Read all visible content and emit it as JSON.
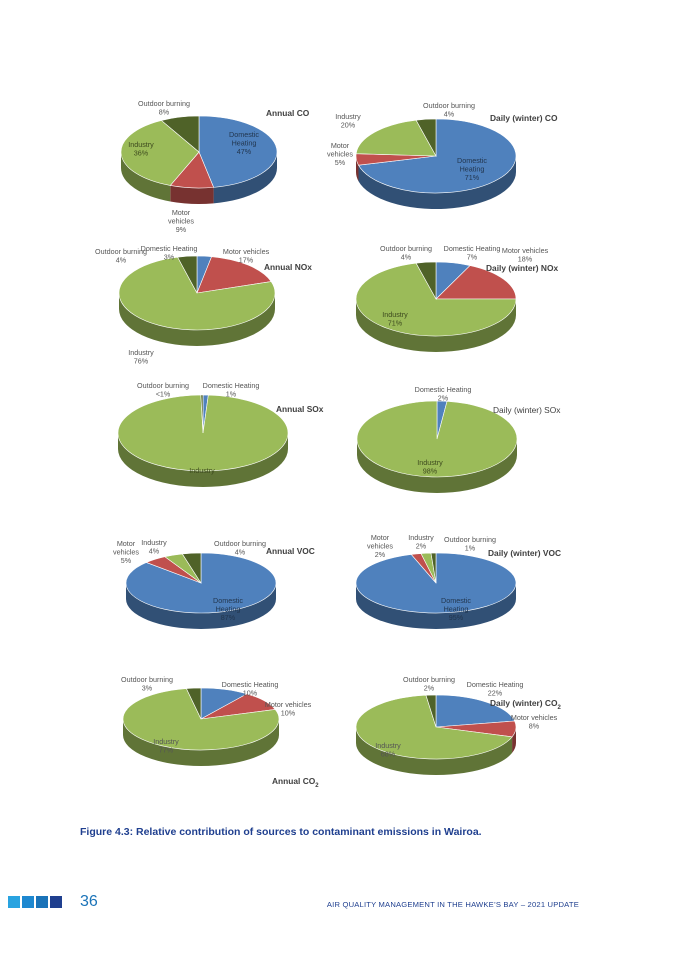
{
  "chart_data": [
    {
      "type": "pie",
      "title": "Annual CO",
      "slices": [
        {
          "label": "Domestic Heating",
          "pct_label": "47%",
          "value": 47
        },
        {
          "label": "Motor vehicles",
          "pct_label": "9%",
          "value": 9
        },
        {
          "label": "Industry",
          "pct_label": "36%",
          "value": 36
        },
        {
          "label": "Outdoor burning",
          "pct_label": "8%",
          "value": 8
        }
      ]
    },
    {
      "type": "pie",
      "title": "Daily (winter) CO",
      "slices": [
        {
          "label": "Domestic Heating",
          "pct_label": "71%",
          "value": 71
        },
        {
          "label": "Motor vehicles",
          "pct_label": "5%",
          "value": 5
        },
        {
          "label": "Industry",
          "pct_label": "20%",
          "value": 20
        },
        {
          "label": "Outdoor burning",
          "pct_label": "4%",
          "value": 4
        }
      ]
    },
    {
      "type": "pie",
      "title": "Annual NOx",
      "slices": [
        {
          "label": "Domestic Heating",
          "pct_label": "3%",
          "value": 3
        },
        {
          "label": "Motor vehicles",
          "pct_label": "17%",
          "value": 17
        },
        {
          "label": "Industry",
          "pct_label": "76%",
          "value": 76
        },
        {
          "label": "Outdoor burning",
          "pct_label": "4%",
          "value": 4
        }
      ]
    },
    {
      "type": "pie",
      "title": "Daily (winter) NOx",
      "slices": [
        {
          "label": "Domestic Heating",
          "pct_label": "7%",
          "value": 7
        },
        {
          "label": "Motor vehicles",
          "pct_label": "18%",
          "value": 18
        },
        {
          "label": "Industry",
          "pct_label": "71%",
          "value": 71
        },
        {
          "label": "Outdoor burning",
          "pct_label": "4%",
          "value": 4
        }
      ]
    },
    {
      "type": "pie",
      "title": "Annual SOx",
      "slices": [
        {
          "label": "Domestic Heating",
          "pct_label": "1%",
          "value": 1
        },
        {
          "label": "Industry",
          "pct_label": "",
          "value": 98.6
        },
        {
          "label": "Outdoor burning",
          "pct_label": "<1%",
          "value": 0.4
        }
      ]
    },
    {
      "type": "pie",
      "title": "Daily (winter) SOx",
      "slices": [
        {
          "label": "Domestic Heating",
          "pct_label": "2%",
          "value": 2
        },
        {
          "label": "Industry",
          "pct_label": "98%",
          "value": 98
        }
      ]
    },
    {
      "type": "pie",
      "title": "Annual VOC",
      "slices": [
        {
          "label": "Domestic Heating",
          "pct_label": "87%",
          "value": 87
        },
        {
          "label": "Motor vehicles",
          "pct_label": "5%",
          "value": 5
        },
        {
          "label": "Industry",
          "pct_label": "4%",
          "value": 4
        },
        {
          "label": "Outdoor burning",
          "pct_label": "4%",
          "value": 4
        }
      ]
    },
    {
      "type": "pie",
      "title": "Daily (winter) VOC",
      "slices": [
        {
          "label": "Domestic Heating",
          "pct_label": "95%",
          "value": 95
        },
        {
          "label": "Motor vehicles",
          "pct_label": "2%",
          "value": 2
        },
        {
          "label": "Industry",
          "pct_label": "2%",
          "value": 2
        },
        {
          "label": "Outdoor burning",
          "pct_label": "1%",
          "value": 1
        }
      ]
    },
    {
      "type": "pie",
      "title": "Annual CO",
      "title_sub": "2",
      "slices": [
        {
          "label": "Domestic Heating",
          "pct_label": "10%",
          "value": 10
        },
        {
          "label": "Motor vehicles",
          "pct_label": "10%",
          "value": 10
        },
        {
          "label": "Industry",
          "pct_label": "77%",
          "value": 77
        },
        {
          "label": "Outdoor burning",
          "pct_label": "3%",
          "value": 3
        }
      ]
    },
    {
      "type": "pie",
      "title": "Daily (winter) CO",
      "title_sub": "2",
      "slices": [
        {
          "label": "Domestic Heating",
          "pct_label": "22%",
          "value": 22
        },
        {
          "label": "Motor vehicles",
          "pct_label": "8%",
          "value": 8
        },
        {
          "label": "Industry",
          "pct_label": "68%",
          "value": 68
        },
        {
          "label": "Outdoor burning",
          "pct_label": "2%",
          "value": 2
        }
      ]
    }
  ],
  "colors": {
    "Domestic Heating": "#4f81bd",
    "Motor vehicles": "#c0504d",
    "Industry": "#9bbb59",
    "Outdoor burning": "#4f6228"
  },
  "caption": "Figure 4.3: Relative contribution of sources to contaminant emissions in Wairoa.",
  "footer": {
    "page_number": "36",
    "running_head": "AIR QUALITY MANAGEMENT IN THE HAWKE’S BAY – 2021 UPDATE"
  }
}
